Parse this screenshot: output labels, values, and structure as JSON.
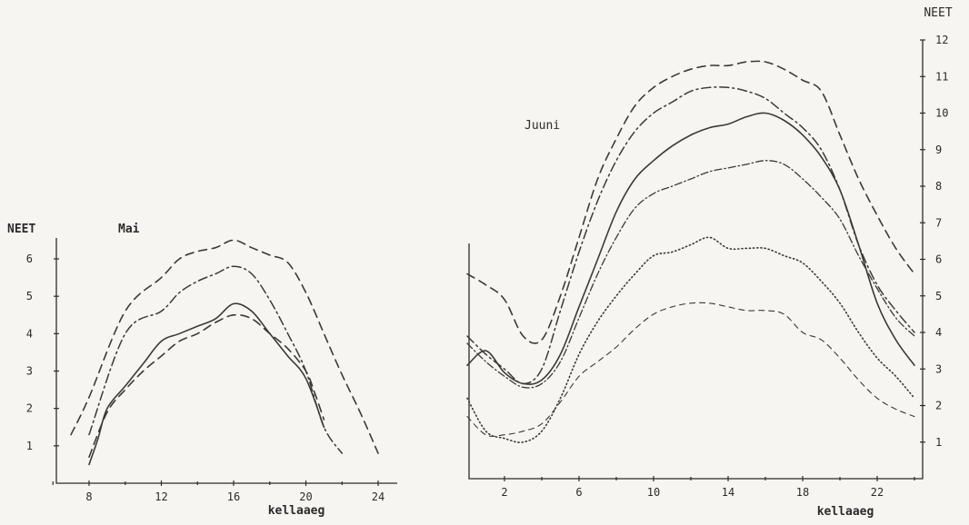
{
  "chart_data": [
    {
      "type": "line",
      "title": "Mai",
      "xlabel": "kellaaeg",
      "ylabel": "NEET",
      "xlim": [
        6,
        25
      ],
      "ylim": [
        0,
        6.6
      ],
      "xticks": [
        8,
        12,
        16,
        20,
        24
      ],
      "yticks": [
        1,
        2,
        3,
        4,
        5,
        6
      ],
      "grid": false,
      "series": [
        {
          "style": "dashed",
          "x": [
            7,
            8,
            10,
            12,
            13,
            14,
            15,
            16,
            17,
            18,
            19,
            20,
            21,
            22,
            23,
            24
          ],
          "y": [
            1.3,
            2.3,
            4.6,
            5.5,
            6.0,
            6.2,
            6.3,
            6.5,
            6.3,
            6.1,
            5.9,
            5.1,
            4.0,
            2.9,
            1.9,
            0.8
          ]
        },
        {
          "style": "dashdot",
          "x": [
            8,
            10,
            12,
            13,
            14,
            15,
            16,
            17,
            18,
            19,
            20,
            21,
            22
          ],
          "y": [
            1.3,
            4.0,
            4.6,
            5.1,
            5.4,
            5.6,
            5.8,
            5.6,
            4.9,
            4.0,
            3.0,
            1.5,
            0.8
          ]
        },
        {
          "style": "solid",
          "x": [
            8,
            8.5,
            9,
            10,
            11,
            12,
            13,
            14,
            15,
            16,
            17,
            18,
            19,
            20,
            21
          ],
          "y": [
            0.5,
            1.2,
            2.0,
            2.6,
            3.2,
            3.8,
            4.0,
            4.2,
            4.4,
            4.8,
            4.6,
            4.0,
            3.4,
            2.8,
            1.5
          ]
        },
        {
          "style": "dashed",
          "x": [
            8,
            9,
            10,
            11,
            12,
            13,
            14,
            15,
            16,
            17,
            18,
            19,
            20,
            20.5,
            21
          ],
          "y": [
            0.7,
            1.9,
            2.5,
            3.0,
            3.4,
            3.8,
            4.0,
            4.3,
            4.5,
            4.4,
            4.0,
            3.6,
            3.0,
            2.4,
            1.7
          ]
        }
      ]
    },
    {
      "type": "line",
      "title": "Juuni",
      "xlabel": "kellaaeg",
      "ylabel": "NEET",
      "xlim": [
        0,
        24
      ],
      "ylim": [
        0,
        12
      ],
      "xticks": [
        2,
        6,
        10,
        14,
        18,
        22
      ],
      "yticks": [
        1,
        2,
        3,
        4,
        5,
        6,
        7,
        8,
        9,
        10,
        11,
        12
      ],
      "grid": false,
      "series": [
        {
          "style": "dashed",
          "x": [
            0,
            1,
            2,
            3,
            4,
            5,
            6,
            7,
            8,
            9,
            10,
            11,
            12,
            13,
            14,
            15,
            16,
            17,
            18,
            19,
            20,
            21,
            22,
            23,
            24
          ],
          "y": [
            5.6,
            5.3,
            4.9,
            3.9,
            3.8,
            5.0,
            6.6,
            8.2,
            9.3,
            10.2,
            10.7,
            11.0,
            11.2,
            11.3,
            11.3,
            11.4,
            11.4,
            11.2,
            10.9,
            10.6,
            9.4,
            8.2,
            7.2,
            6.3,
            5.6
          ]
        },
        {
          "style": "dashdot",
          "x": [
            0,
            1,
            2,
            3,
            4,
            5,
            6,
            7,
            8,
            9,
            10,
            11,
            12,
            13,
            14,
            15,
            16,
            17,
            18,
            19,
            20,
            21,
            22,
            23,
            24
          ],
          "y": [
            3.9,
            3.4,
            3.0,
            2.6,
            3.0,
            4.6,
            6.2,
            7.6,
            8.7,
            9.5,
            10.0,
            10.3,
            10.6,
            10.7,
            10.7,
            10.6,
            10.4,
            10.0,
            9.6,
            9.0,
            7.9,
            6.4,
            5.3,
            4.6,
            4.0
          ]
        },
        {
          "style": "solid",
          "x": [
            0,
            1,
            2,
            3,
            4,
            5,
            6,
            7,
            8,
            9,
            10,
            11,
            12,
            13,
            14,
            15,
            16,
            17,
            18,
            19,
            20,
            21,
            22,
            23,
            24
          ],
          "y": [
            3.1,
            3.5,
            2.9,
            2.6,
            2.7,
            3.4,
            4.7,
            6.0,
            7.3,
            8.2,
            8.7,
            9.1,
            9.4,
            9.6,
            9.7,
            9.9,
            10.0,
            9.8,
            9.4,
            8.8,
            7.9,
            6.4,
            4.8,
            3.8,
            3.1
          ]
        },
        {
          "style": "dashdot-fine",
          "x": [
            0,
            1,
            2,
            3,
            4,
            5,
            6,
            7,
            8,
            9,
            10,
            11,
            12,
            13,
            14,
            15,
            16,
            17,
            18,
            19,
            20,
            21,
            22,
            23,
            24
          ],
          "y": [
            3.7,
            3.2,
            2.8,
            2.5,
            2.6,
            3.2,
            4.4,
            5.6,
            6.6,
            7.4,
            7.8,
            8.0,
            8.2,
            8.4,
            8.5,
            8.6,
            8.7,
            8.6,
            8.2,
            7.7,
            7.1,
            6.1,
            5.2,
            4.4,
            3.9
          ]
        },
        {
          "style": "dotted",
          "x": [
            0,
            1,
            2,
            3,
            4,
            5,
            6,
            7,
            8,
            9,
            10,
            11,
            12,
            13,
            14,
            15,
            16,
            17,
            18,
            19,
            20,
            21,
            22,
            23,
            24
          ],
          "y": [
            2.2,
            1.3,
            1.1,
            1.0,
            1.3,
            2.2,
            3.4,
            4.3,
            5.0,
            5.6,
            6.1,
            6.2,
            6.4,
            6.6,
            6.3,
            6.3,
            6.3,
            6.1,
            5.9,
            5.4,
            4.8,
            4.0,
            3.3,
            2.8,
            2.2
          ]
        },
        {
          "style": "dashed-fine",
          "x": [
            0,
            1,
            2,
            3,
            4,
            5,
            6,
            7,
            8,
            9,
            10,
            11,
            12,
            13,
            14,
            15,
            16,
            17,
            18,
            19,
            20,
            21,
            22,
            23,
            24
          ],
          "y": [
            1.7,
            1.2,
            1.2,
            1.3,
            1.5,
            2.1,
            2.8,
            3.2,
            3.6,
            4.1,
            4.5,
            4.7,
            4.8,
            4.8,
            4.7,
            4.6,
            4.6,
            4.5,
            4.0,
            3.8,
            3.3,
            2.7,
            2.2,
            1.9,
            1.7
          ]
        }
      ]
    }
  ]
}
